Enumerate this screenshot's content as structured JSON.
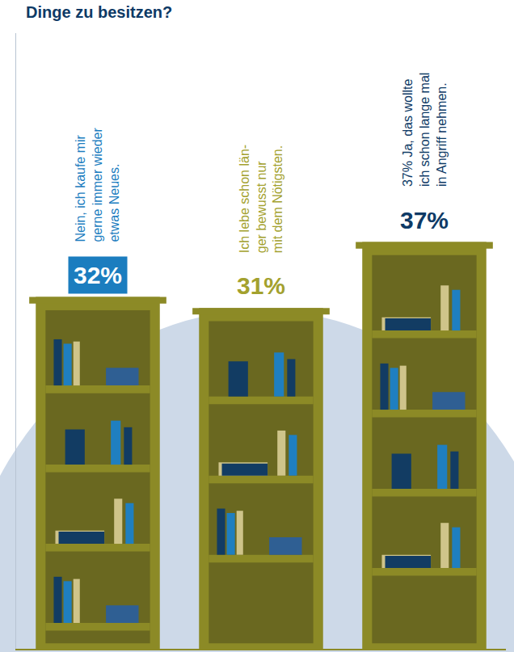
{
  "chart_data": {
    "type": "bar",
    "title": "Dinge zu besitzen?",
    "categories": [
      "Nein, ich kaufe mir\ngerne immer wieder\netwas Neues.",
      "Ich lebe schon län-\nger bewusst nur\nmit dem Nötigsten.",
      "37% Ja, das wollte\nich schon lange mal\nin Angriff nehmen."
    ],
    "values": [
      32,
      31,
      37
    ],
    "value_labels": [
      "32%",
      "31%",
      "37%"
    ],
    "data_labels": true,
    "color": "#8c8a26",
    "ylim": [
      0,
      56
    ],
    "tick_labels": false,
    "grid": false
  }
}
